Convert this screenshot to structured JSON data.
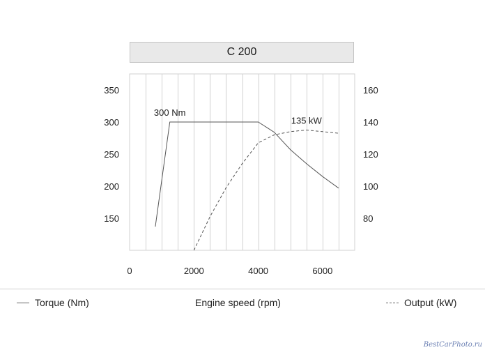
{
  "chart_data": {
    "type": "line",
    "title": "C 200",
    "xlabel": "Engine speed (rpm)",
    "xlim": [
      0,
      7000
    ],
    "x_ticks": [
      0,
      2000,
      4000,
      6000
    ],
    "y_left": {
      "ticks": [
        150,
        200,
        250,
        300,
        350
      ],
      "lim": [
        100,
        375
      ]
    },
    "y_right": {
      "ticks": [
        80,
        100,
        120,
        140,
        160
      ],
      "lim": [
        60,
        170
      ]
    },
    "grid": true,
    "series": [
      {
        "name": "Torque (Nm)",
        "axis": "left",
        "style": "solid",
        "x": [
          800,
          1250,
          4000,
          4500,
          5000,
          5500,
          6000,
          6500
        ],
        "y": [
          137,
          300,
          300,
          284,
          257,
          235,
          215,
          197
        ]
      },
      {
        "name": "Output (kW)",
        "axis": "right",
        "style": "dashed",
        "x": [
          2000,
          2500,
          3000,
          3500,
          4000,
          4500,
          5000,
          5500,
          6000,
          6500
        ],
        "y": [
          60,
          81,
          99,
          114,
          127,
          132,
          134,
          135,
          134,
          133
        ]
      }
    ],
    "annotations": [
      {
        "text": "300 Nm",
        "x": 1250,
        "y": 300,
        "axis": "left"
      },
      {
        "text": "135 kW",
        "x": 5500,
        "y": 135,
        "axis": "right"
      }
    ]
  },
  "legend": {
    "torque": "Torque (Nm)",
    "engine_speed": "Engine speed (rpm)",
    "output": "Output (kW)"
  },
  "watermark": "BestCarPhoto.ru",
  "colors": {
    "line": "#555555",
    "grid": "#d0d0d0",
    "title_bg": "#e9e9e9"
  }
}
